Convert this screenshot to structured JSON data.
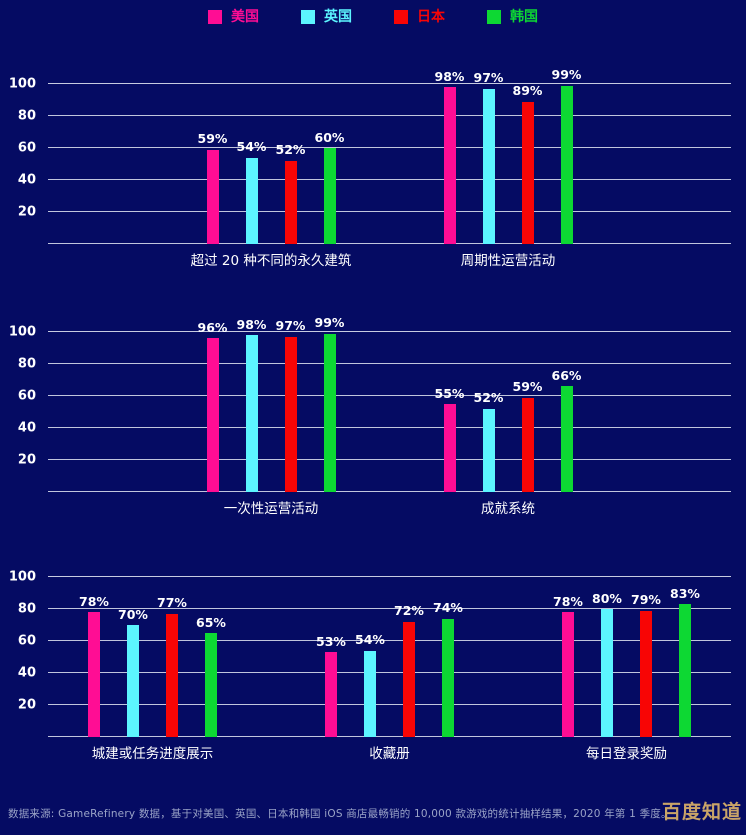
{
  "legend": [
    {
      "label": "美国",
      "color": "#ff0d94"
    },
    {
      "label": "英国",
      "color": "#5cf5ff"
    },
    {
      "label": "日本",
      "color": "#f80505"
    },
    {
      "label": "韩国",
      "color": "#0dd833"
    }
  ],
  "chart_data": [
    {
      "type": "bar",
      "categories": [
        "超过 20 种不同的永久建筑",
        "周期性运营活动"
      ],
      "series": [
        {
          "name": "美国",
          "color": "#ff0d94",
          "values": [
            59,
            98
          ]
        },
        {
          "name": "英国",
          "color": "#5cf5ff",
          "values": [
            54,
            97
          ]
        },
        {
          "name": "日本",
          "color": "#f80505",
          "values": [
            52,
            89
          ]
        },
        {
          "name": "韩国",
          "color": "#0dd833",
          "values": [
            60,
            99
          ]
        }
      ],
      "unit": "%",
      "ylim": [
        0,
        100
      ],
      "yticks": [
        20,
        40,
        60,
        80,
        100
      ],
      "grid": true,
      "legend_position": "top"
    },
    {
      "type": "bar",
      "categories": [
        "一次性运营活动",
        "成就系统"
      ],
      "series": [
        {
          "name": "美国",
          "color": "#ff0d94",
          "values": [
            96,
            55
          ]
        },
        {
          "name": "英国",
          "color": "#5cf5ff",
          "values": [
            98,
            52
          ]
        },
        {
          "name": "日本",
          "color": "#f80505",
          "values": [
            97,
            59
          ]
        },
        {
          "name": "韩国",
          "color": "#0dd833",
          "values": [
            99,
            66
          ]
        }
      ],
      "unit": "%",
      "ylim": [
        0,
        100
      ],
      "yticks": [
        20,
        40,
        60,
        80,
        100
      ],
      "grid": true,
      "legend_position": "top"
    },
    {
      "type": "bar",
      "categories": [
        "城建或任务进度展示",
        "收藏册",
        "每日登录奖励"
      ],
      "series": [
        {
          "name": "美国",
          "color": "#ff0d94",
          "values": [
            78,
            53,
            78
          ]
        },
        {
          "name": "英国",
          "color": "#5cf5ff",
          "values": [
            70,
            54,
            80
          ]
        },
        {
          "name": "日本",
          "color": "#f80505",
          "values": [
            77,
            72,
            79
          ]
        },
        {
          "name": "韩国",
          "color": "#0dd833",
          "values": [
            65,
            74,
            83
          ]
        }
      ],
      "unit": "%",
      "ylim": [
        0,
        100
      ],
      "yticks": [
        20,
        40,
        60,
        80,
        100
      ],
      "grid": true,
      "legend_position": "top"
    }
  ],
  "footer": {
    "source_text": "数据来源: GameRefinery 数据，基于对美国、英国、日本和韩国 iOS 商店最畅销的 10,000 款游戏的统计抽样结果，2020 年第 1 季度。"
  },
  "watermark": {
    "text": "百度知道"
  },
  "colors": {
    "background": "#050b63",
    "gridline": "#e9ebf7",
    "text": "#ffffff",
    "footer_text": "#9aa3c7",
    "watermark_text": "#c9a468"
  }
}
